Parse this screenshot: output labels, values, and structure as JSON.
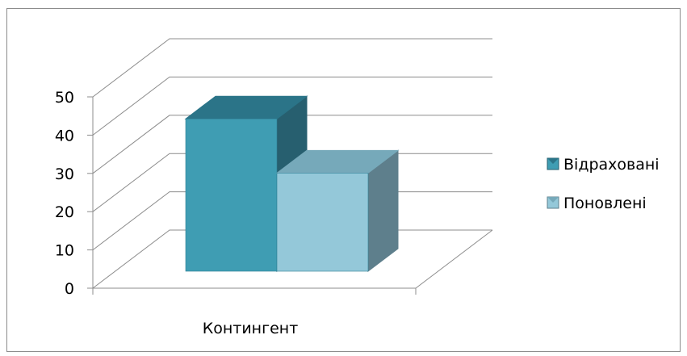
{
  "chart_data": {
    "type": "bar",
    "categories": [
      "Контингент"
    ],
    "series": [
      {
        "name": "Відраховані",
        "values": [
          45
        ],
        "color": "#3f9db3",
        "top_color": "#2b7488",
        "side_color": "#275f6f"
      },
      {
        "name": "Поновлені",
        "values": [
          29
        ],
        "color": "#94c8d9",
        "top_color": "#76a9ba",
        "side_color": "#5e7f8c"
      }
    ],
    "yticks": [
      0,
      10,
      20,
      30,
      40,
      50
    ],
    "ylim": [
      0,
      50
    ],
    "title": "",
    "xlabel": "",
    "ylabel": "",
    "grid": true,
    "legend": "right",
    "projection": "3d"
  }
}
